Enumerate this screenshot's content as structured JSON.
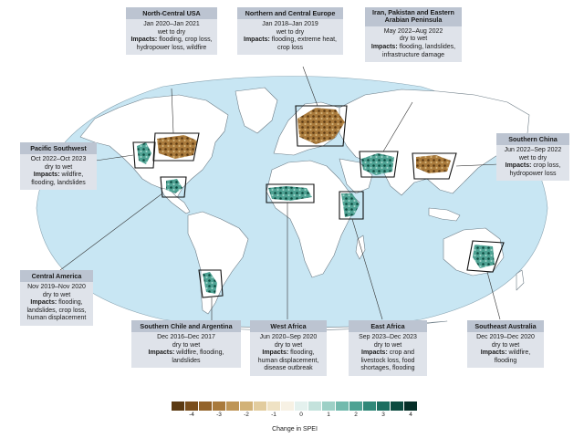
{
  "colors": {
    "ocean": "#c8e6f3",
    "land": "#ffffff",
    "coast": "#6d7c86",
    "callout_bg": "#dfe3ea",
    "callout_title_bg": "#bcc4d1",
    "dry_dark": "#5c3a12",
    "wet_dark": "#0c4a3f"
  },
  "regions": [
    {
      "id": "north-central-usa",
      "title": "North-Central USA",
      "period": "Jan 2020–Jan 2021",
      "direction": "wet to dry",
      "impacts_label": "Impacts:",
      "impacts": "flooding, crop loss, hydropower loss, wildfire"
    },
    {
      "id": "northern-central-europe",
      "title": "Northern and Central Europe",
      "period": "Jan 2018–Jan 2019",
      "direction": "wet to dry",
      "impacts_label": "Impacts:",
      "impacts": "flooding, extreme heat, crop loss"
    },
    {
      "id": "iran-pakistan",
      "title": "Iran, Pakistan and Eastern Arabian Peninsula",
      "period": "May 2022–Aug 2022",
      "direction": "dry to wet",
      "impacts_label": "Impacts:",
      "impacts": "flooding, landslides, infrastructure damage"
    },
    {
      "id": "pacific-southwest",
      "title": "Pacific Southwest",
      "period": "Oct 2022–Oct 2023",
      "direction": "dry to wet",
      "impacts_label": "Impacts:",
      "impacts": "wildfire, flooding, landslides"
    },
    {
      "id": "southern-china",
      "title": "Southern China",
      "period": "Jun 2022–Sep 2022",
      "direction": "wet to dry",
      "impacts_label": "Impacts:",
      "impacts": "crop loss, hydropower loss"
    },
    {
      "id": "central-america",
      "title": "Central America",
      "period": "Nov 2019–Nov 2020",
      "direction": "dry to wet",
      "impacts_label": "Impacts:",
      "impacts": "flooding, landslides, crop loss, human displacement"
    },
    {
      "id": "southern-chile-argentina",
      "title": "Southern Chile and Argentina",
      "period": "Dec 2016–Dec 2017",
      "direction": "dry to wet",
      "impacts_label": "Impacts:",
      "impacts": "wildfire, flooding, landslides"
    },
    {
      "id": "west-africa",
      "title": "West Africa",
      "period": "Jun 2020–Sep 2020",
      "direction": "dry to wet",
      "impacts_label": "Impacts:",
      "impacts": "flooding, human displacement, disease outbreak"
    },
    {
      "id": "east-africa",
      "title": "East Africa",
      "period": "Sep 2023–Dec 2023",
      "direction": "dry to wet",
      "impacts_label": "Impacts:",
      "impacts": "crop and livestock loss, food shortages, flooding"
    },
    {
      "id": "southeast-australia",
      "title": "Southeast Australia",
      "period": "Dec 2019–Dec 2020",
      "direction": "dry to wet",
      "impacts_label": "Impacts:",
      "impacts": "wildfire, flooding"
    }
  ],
  "legend": {
    "title": "Change in SPEI",
    "ticks": [
      "-4",
      "-3",
      "-2",
      "-1",
      "0",
      "1",
      "2",
      "3",
      "4"
    ],
    "colors": [
      "#5c3a12",
      "#7a4e1c",
      "#93632a",
      "#a97a3c",
      "#be9556",
      "#d2b278",
      "#e2cc9e",
      "#efe2c4",
      "#f7f1e4",
      "#e4f1ee",
      "#c4e2dc",
      "#9dd0c6",
      "#72baad",
      "#4ea293",
      "#2f8878",
      "#1c6e60",
      "#0c4a3f",
      "#062f28"
    ]
  }
}
